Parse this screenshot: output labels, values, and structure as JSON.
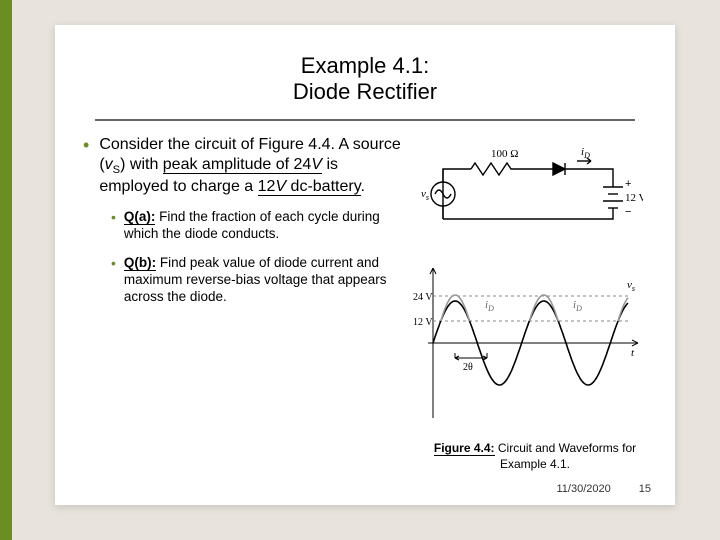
{
  "title_line1": "Example 4.1:",
  "title_line2": "Diode Rectifier",
  "main_bullet": {
    "prefix": "Consider the circuit of Figure 4.4.  A source (",
    "var": "v",
    "sub": "S",
    "mid": ") with ",
    "u1": "peak amplitude of 24",
    "u1_var": "V",
    "mid2": " is employed to charge a ",
    "u2": "12",
    "u2_var": "V",
    "u2b": " dc-battery",
    "suffix": "."
  },
  "qa": {
    "label": "Q(a):",
    "text": " Find the fraction of each cycle during which the diode conducts."
  },
  "qb": {
    "label": "Q(b):",
    "text": " Find peak value of diode current and maximum reverse-bias voltage that appears across the diode."
  },
  "figure": {
    "caption_bold": "Figure 4.4:",
    "caption_rest": " Circuit and Waveforms for Example 4.1.",
    "circuit": {
      "resistor_label": "100 Ω",
      "id_label": "iD",
      "source_label": "vs",
      "battery_label": "12 V",
      "battery_plus": "+",
      "battery_minus": "−",
      "stroke": "#000000",
      "wire_width": 1.4
    },
    "wave": {
      "stroke": "#000000",
      "axis_color": "#000000",
      "vs_color": "#000000",
      "id_color": "#999999",
      "level_24": "24 V",
      "level_12": "12 V",
      "vs_label": "vs",
      "id_label": "iD",
      "t_label": "t",
      "theta_label": "2θ",
      "amplitude_vs": 42,
      "amplitude_id": 26,
      "cycles": 2.2,
      "dc_level": 22
    }
  },
  "footer": {
    "date": "11/30/2020",
    "page": "15"
  },
  "colors": {
    "accent": "#6b8e23",
    "slide_bg": "#ffffff",
    "page_bg": "#e8e4dd"
  }
}
